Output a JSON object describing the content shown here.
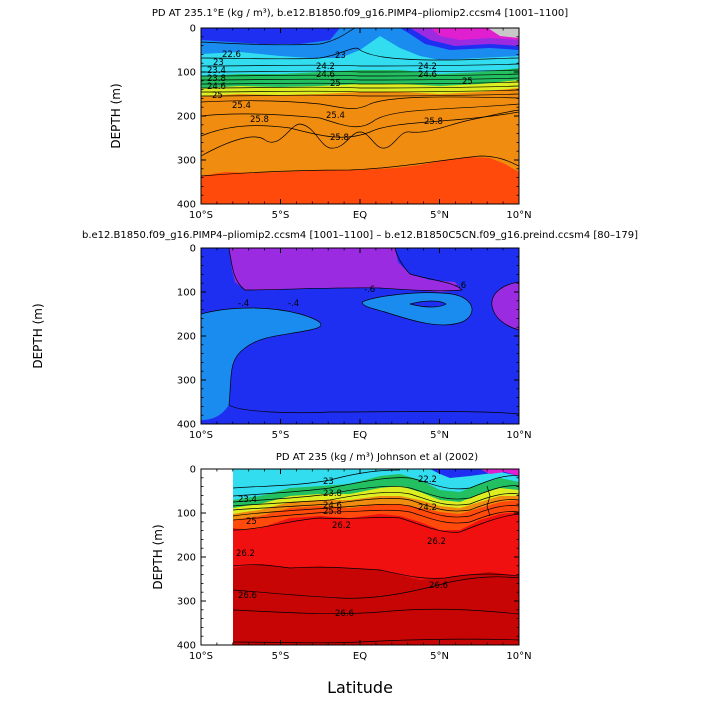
{
  "palette": {
    "magenta": "#e020d0",
    "purple": "#9b2be0",
    "blue": "#1f2ff2",
    "azure": "#1a8cf0",
    "cyan": "#33ddf0",
    "green": "#22c060",
    "yellow": "#ddee22",
    "orange": "#f08c10",
    "redorange": "#ff4a0c",
    "red": "#f01010",
    "darkred": "#c80505",
    "gray": "#c8c8c8"
  },
  "chart_data": [
    {
      "type": "contour",
      "title": "PD AT 235.1°E (kg / m³), b.e12.B1850.f09_g16.PIMP4–pliomip2.ccsm4 [1001–1100]",
      "xlabel": "",
      "ylabel": "DEPTH (m)",
      "xlim": [
        -10,
        10
      ],
      "ylim": [
        400,
        0
      ],
      "x_tick_labels": [
        "10°S",
        "5°S",
        "EQ",
        "5°N",
        "10°N"
      ],
      "y_tick_labels": [
        "0",
        "100",
        "200",
        "300",
        "400"
      ],
      "contour_labels": [
        "22.6",
        "23",
        "23.4",
        "23.8",
        "24.2",
        "24.6",
        "25",
        "25.4",
        "25.8"
      ]
    },
    {
      "type": "contour",
      "title": "b.e12.B1850.f09_g16.PIMP4–pliomip2.ccsm4 [1001–1100] – b.e12.B1850C5CN.f09_g16.preind.ccsm4 [80–179]",
      "xlabel": "",
      "ylabel": "DEPTH (m)",
      "xlim": [
        -10,
        10
      ],
      "ylim": [
        400,
        0
      ],
      "x_tick_labels": [
        "10°S",
        "5°S",
        "EQ",
        "5°N",
        "10°N"
      ],
      "y_tick_labels": [
        "0",
        "100",
        "200",
        "300",
        "400"
      ],
      "contour_labels": [
        "-.4",
        "-.4",
        "-.6",
        "-.6"
      ]
    },
    {
      "type": "contour",
      "title": "PD AT 235 (kg / m³) Johnson et al (2002)",
      "xlabel": "Latitude",
      "ylabel": "DEPTH (m)",
      "xlim": [
        -10,
        10
      ],
      "ylim": [
        400,
        0
      ],
      "data_x_range": [
        -8,
        10
      ],
      "x_tick_labels": [
        "10°S",
        "5°S",
        "EQ",
        "5°N",
        "10°N"
      ],
      "y_tick_labels": [
        "0",
        "100",
        "200",
        "300",
        "400"
      ],
      "contour_labels": [
        "22.2",
        "23",
        "23.4",
        "23.8",
        "24.2",
        "24.6",
        "25",
        "25.8",
        "26.2",
        "26.2",
        "26.6",
        "26.6",
        "26.6"
      ]
    }
  ]
}
